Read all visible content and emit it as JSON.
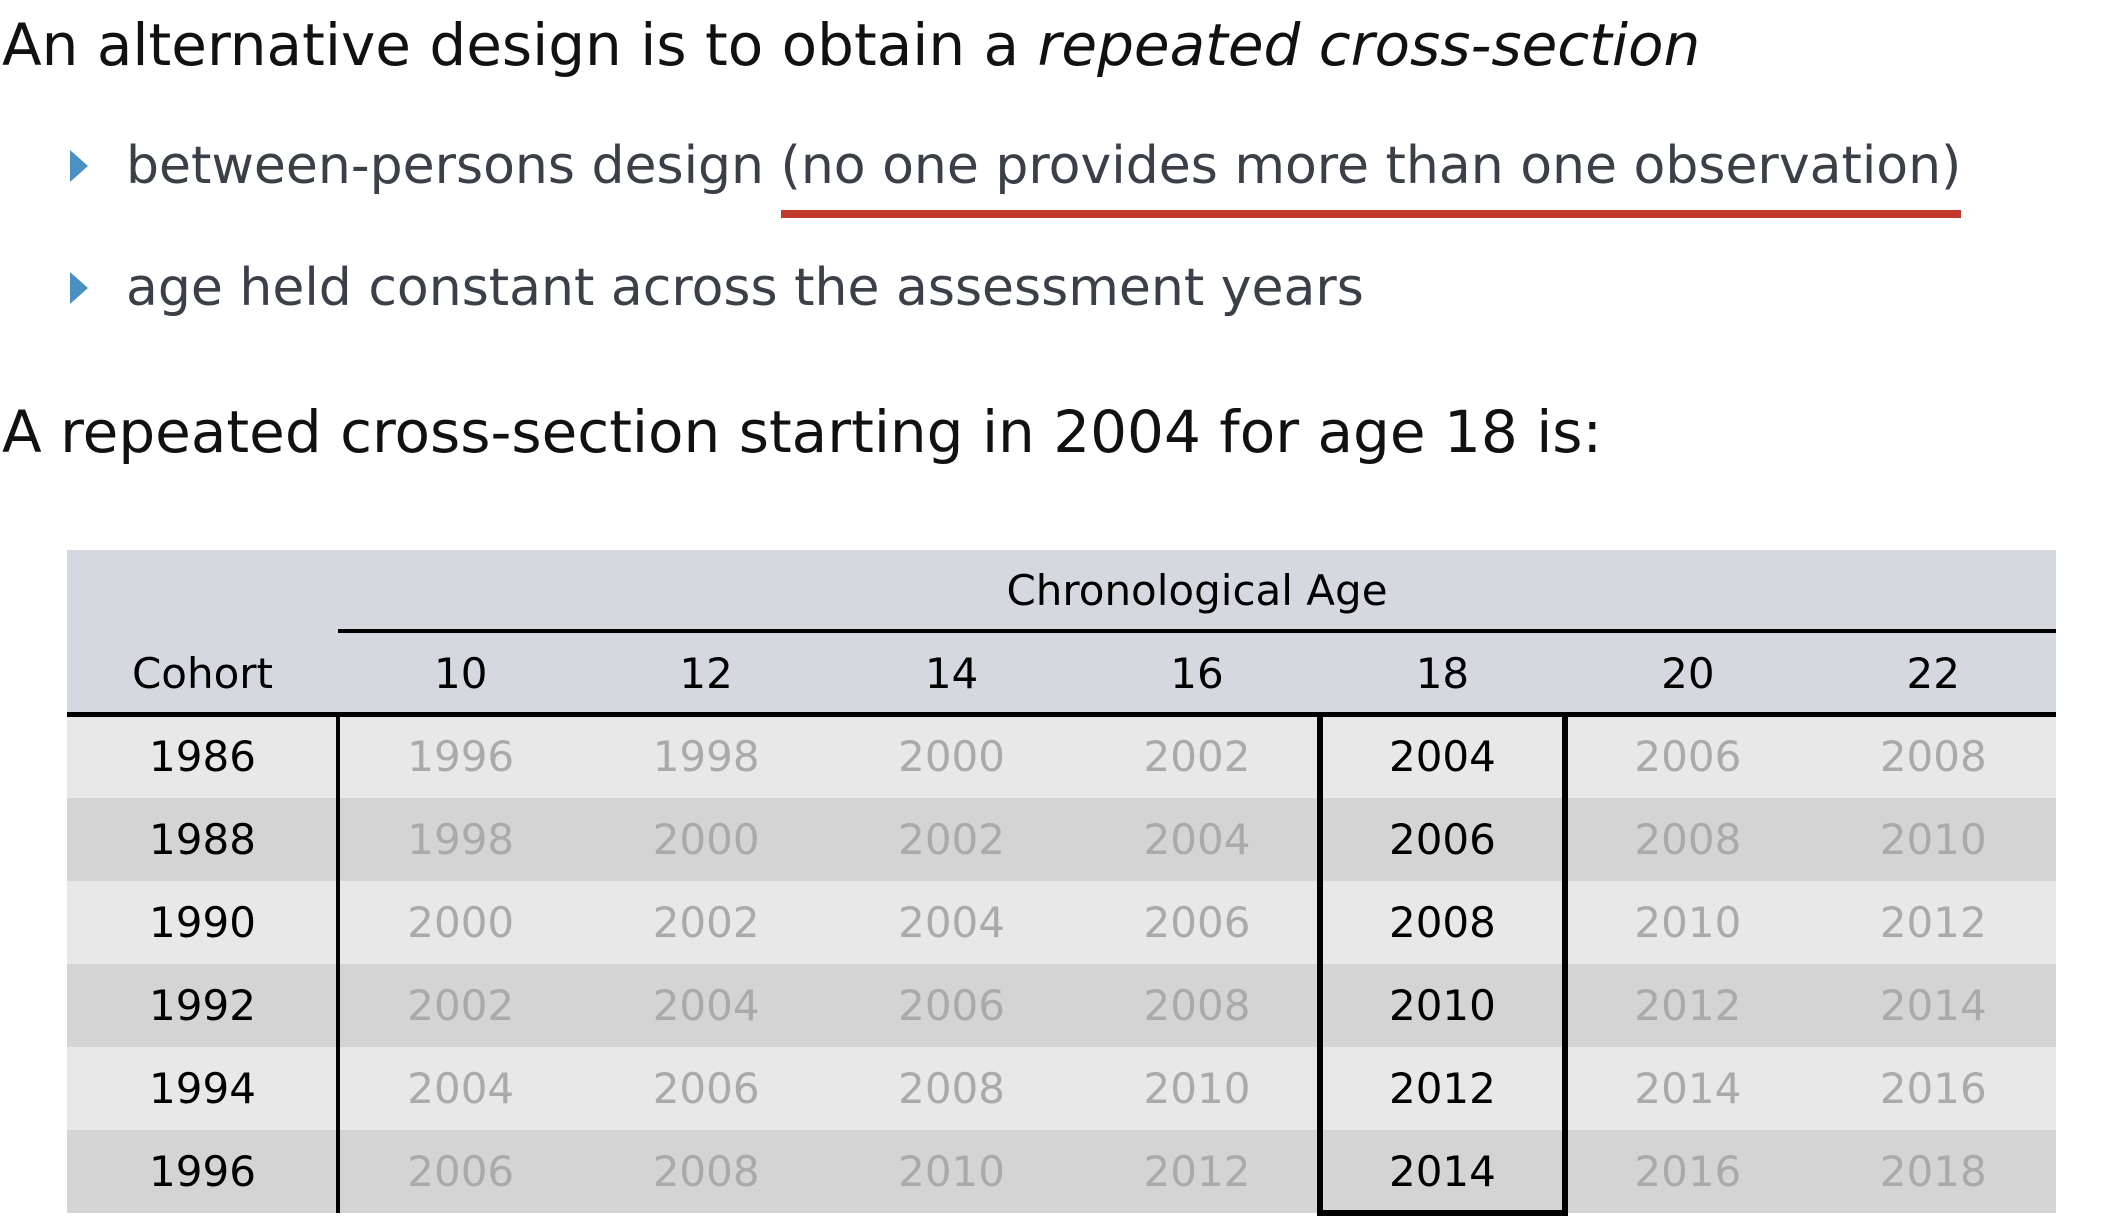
{
  "heading": {
    "text": "An alternative design is to obtain a ",
    "emphasis": "repeated cross-section"
  },
  "bullets": [
    {
      "text": "between-persons design ",
      "underlined": "(no one provides more than one observation)"
    },
    {
      "text": "age held constant across the assessment years"
    }
  ],
  "subheading": "A repeated cross-section starting in 2004  for age 18 is:",
  "table": {
    "group_header": "Chronological Age",
    "row_header": "Cohort",
    "columns": [
      "10",
      "12",
      "14",
      "16",
      "18",
      "20",
      "22"
    ],
    "highlighted_column": "18",
    "rows": [
      {
        "cohort": "1986",
        "cells": [
          "1996",
          "1998",
          "2000",
          "2002",
          "2004",
          "2006",
          "2008"
        ]
      },
      {
        "cohort": "1988",
        "cells": [
          "1998",
          "2000",
          "2002",
          "2004",
          "2006",
          "2008",
          "2010"
        ]
      },
      {
        "cohort": "1990",
        "cells": [
          "2000",
          "2002",
          "2004",
          "2006",
          "2008",
          "2010",
          "2012"
        ]
      },
      {
        "cohort": "1992",
        "cells": [
          "2002",
          "2004",
          "2006",
          "2008",
          "2010",
          "2012",
          "2014"
        ]
      },
      {
        "cohort": "1994",
        "cells": [
          "2004",
          "2006",
          "2008",
          "2010",
          "2012",
          "2014",
          "2016"
        ]
      },
      {
        "cohort": "1996",
        "cells": [
          "2006",
          "2008",
          "2010",
          "2012",
          "2014",
          "2016",
          "2018"
        ]
      }
    ]
  }
}
